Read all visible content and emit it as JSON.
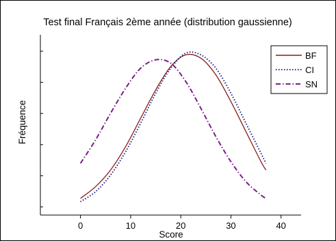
{
  "chart_data": {
    "type": "line",
    "title": "Test final Français 2ème année (distribution gaussienne)",
    "xlabel": "Score",
    "ylabel": "Fréquence",
    "xlim": [
      -8,
      44
    ],
    "ylim": [
      0,
      1.08
    ],
    "xticks": [
      0,
      10,
      20,
      30,
      40
    ],
    "ytick_count": 6,
    "grid": false,
    "legend_position": "top-right",
    "series": [
      {
        "name": "BF",
        "color": "#8b1a1a",
        "dash": "solid",
        "x": [
          0,
          3,
          6,
          9,
          12,
          15,
          18,
          21,
          24,
          27,
          30,
          33,
          36,
          37
        ],
        "y": [
          0.1,
          0.17,
          0.27,
          0.41,
          0.58,
          0.75,
          0.89,
          0.96,
          0.94,
          0.84,
          0.68,
          0.5,
          0.32,
          0.27
        ]
      },
      {
        "name": "CI",
        "color": "#1a237e",
        "dash": "dotted",
        "x": [
          0,
          3,
          6,
          9,
          12,
          15,
          18,
          21,
          24,
          27,
          30,
          33,
          36,
          37
        ],
        "y": [
          0.08,
          0.14,
          0.24,
          0.38,
          0.55,
          0.73,
          0.88,
          0.97,
          0.96,
          0.88,
          0.73,
          0.55,
          0.37,
          0.31
        ]
      },
      {
        "name": "SN",
        "color": "#7a1a8a",
        "dash": "dashdot",
        "x": [
          0,
          3,
          6,
          9,
          12,
          15,
          18,
          21,
          24,
          27,
          30,
          33,
          36,
          37
        ],
        "y": [
          0.31,
          0.45,
          0.61,
          0.76,
          0.88,
          0.93,
          0.91,
          0.8,
          0.64,
          0.47,
          0.32,
          0.2,
          0.12,
          0.1
        ]
      }
    ]
  }
}
